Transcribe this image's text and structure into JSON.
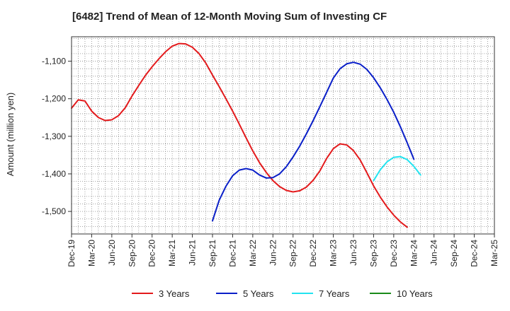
{
  "chart_data": {
    "type": "line",
    "title": "[6482]  Trend of Mean of 12-Month Moving Sum of Investing CF",
    "ylabel": "Amount (million yen)",
    "xlabel": "",
    "x_range": [
      "2019-12",
      "2025-03"
    ],
    "ylim": [
      -1560,
      -1035
    ],
    "yticks": [
      -1500,
      -1400,
      -1300,
      -1200,
      -1100
    ],
    "ytick_labels": [
      "-1,500",
      "-1,400",
      "-1,300",
      "-1,200",
      "-1,100"
    ],
    "xtick_labels": [
      "Dec-19",
      "Mar-20",
      "Jun-20",
      "Sep-20",
      "Dec-20",
      "Mar-21",
      "Jun-21",
      "Sep-21",
      "Dec-21",
      "Mar-22",
      "Jun-22",
      "Sep-22",
      "Dec-22",
      "Mar-23",
      "Jun-23",
      "Sep-23",
      "Dec-23",
      "Mar-24",
      "Jun-24",
      "Sep-24",
      "Dec-24",
      "Mar-25"
    ],
    "grid": true,
    "legend_position": "bottom",
    "series": [
      {
        "name": "3 Years",
        "color": "#e31a1c",
        "points": [
          [
            "2019-12",
            -1225
          ],
          [
            "2020-01",
            -1203
          ],
          [
            "2020-02",
            -1206
          ],
          [
            "2020-03",
            -1233
          ],
          [
            "2020-04",
            -1250
          ],
          [
            "2020-05",
            -1258
          ],
          [
            "2020-06",
            -1256
          ],
          [
            "2020-07",
            -1245
          ],
          [
            "2020-08",
            -1224
          ],
          [
            "2020-09",
            -1193
          ],
          [
            "2020-10",
            -1165
          ],
          [
            "2020-11",
            -1138
          ],
          [
            "2020-12",
            -1115
          ],
          [
            "2021-01",
            -1094
          ],
          [
            "2021-02",
            -1075
          ],
          [
            "2021-03",
            -1060
          ],
          [
            "2021-04",
            -1053
          ],
          [
            "2021-05",
            -1054
          ],
          [
            "2021-06",
            -1063
          ],
          [
            "2021-07",
            -1080
          ],
          [
            "2021-08",
            -1105
          ],
          [
            "2021-09",
            -1137
          ],
          [
            "2021-10",
            -1168
          ],
          [
            "2021-11",
            -1200
          ],
          [
            "2021-12",
            -1233
          ],
          [
            "2022-01",
            -1268
          ],
          [
            "2022-02",
            -1304
          ],
          [
            "2022-03",
            -1339
          ],
          [
            "2022-04",
            -1370
          ],
          [
            "2022-05",
            -1396
          ],
          [
            "2022-06",
            -1418
          ],
          [
            "2022-07",
            -1434
          ],
          [
            "2022-08",
            -1444
          ],
          [
            "2022-09",
            -1448
          ],
          [
            "2022-10",
            -1445
          ],
          [
            "2022-11",
            -1435
          ],
          [
            "2022-12",
            -1417
          ],
          [
            "2023-01",
            -1392
          ],
          [
            "2023-02",
            -1359
          ],
          [
            "2023-03",
            -1333
          ],
          [
            "2023-04",
            -1320
          ],
          [
            "2023-05",
            -1323
          ],
          [
            "2023-06",
            -1338
          ],
          [
            "2023-07",
            -1363
          ],
          [
            "2023-08",
            -1397
          ],
          [
            "2023-09",
            -1432
          ],
          [
            "2023-10",
            -1462
          ],
          [
            "2023-11",
            -1488
          ],
          [
            "2023-12",
            -1510
          ],
          [
            "2024-01",
            -1528
          ],
          [
            "2024-02",
            -1542
          ]
        ]
      },
      {
        "name": "5 Years",
        "color": "#0a1fc8",
        "points": [
          [
            "2021-09",
            -1525
          ],
          [
            "2021-10",
            -1470
          ],
          [
            "2021-11",
            -1433
          ],
          [
            "2021-12",
            -1405
          ],
          [
            "2022-01",
            -1390
          ],
          [
            "2022-02",
            -1386
          ],
          [
            "2022-03",
            -1390
          ],
          [
            "2022-04",
            -1403
          ],
          [
            "2022-05",
            -1411
          ],
          [
            "2022-06",
            -1410
          ],
          [
            "2022-07",
            -1400
          ],
          [
            "2022-08",
            -1381
          ],
          [
            "2022-09",
            -1355
          ],
          [
            "2022-10",
            -1326
          ],
          [
            "2022-11",
            -1293
          ],
          [
            "2022-12",
            -1258
          ],
          [
            "2023-01",
            -1221
          ],
          [
            "2023-02",
            -1183
          ],
          [
            "2023-03",
            -1145
          ],
          [
            "2023-04",
            -1120
          ],
          [
            "2023-05",
            -1107
          ],
          [
            "2023-06",
            -1103
          ],
          [
            "2023-07",
            -1108
          ],
          [
            "2023-08",
            -1122
          ],
          [
            "2023-09",
            -1144
          ],
          [
            "2023-10",
            -1171
          ],
          [
            "2023-11",
            -1202
          ],
          [
            "2023-12",
            -1236
          ],
          [
            "2024-01",
            -1275
          ],
          [
            "2024-02",
            -1317
          ],
          [
            "2024-03",
            -1361
          ]
        ]
      },
      {
        "name": "7 Years",
        "color": "#22e3ef",
        "points": [
          [
            "2023-09",
            -1418
          ],
          [
            "2023-10",
            -1389
          ],
          [
            "2023-11",
            -1368
          ],
          [
            "2023-12",
            -1356
          ],
          [
            "2024-01",
            -1354
          ],
          [
            "2024-02",
            -1362
          ],
          [
            "2024-03",
            -1380
          ],
          [
            "2024-04",
            -1403
          ]
        ]
      },
      {
        "name": "10 Years",
        "color": "#1a8a1a",
        "points": []
      }
    ]
  }
}
